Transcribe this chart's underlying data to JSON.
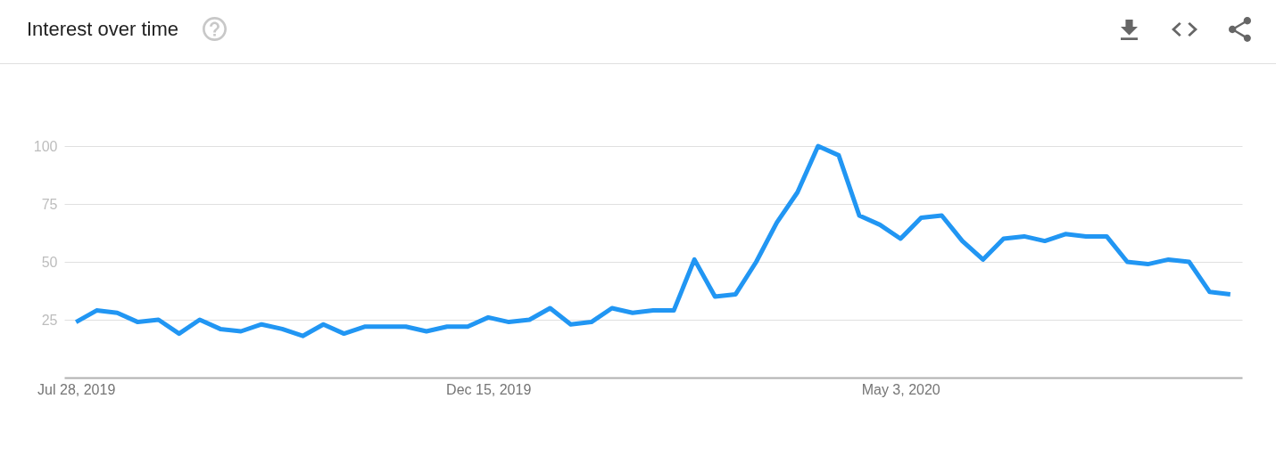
{
  "chart_data": {
    "type": "line",
    "title": "Interest over time",
    "x": [
      "2019-07-28",
      "2019-08-04",
      "2019-08-11",
      "2019-08-18",
      "2019-08-25",
      "2019-09-01",
      "2019-09-08",
      "2019-09-15",
      "2019-09-22",
      "2019-09-29",
      "2019-10-06",
      "2019-10-13",
      "2019-10-20",
      "2019-10-27",
      "2019-11-03",
      "2019-11-10",
      "2019-11-17",
      "2019-11-24",
      "2019-12-01",
      "2019-12-08",
      "2019-12-15",
      "2019-12-22",
      "2019-12-29",
      "2020-01-05",
      "2020-01-12",
      "2020-01-19",
      "2020-01-26",
      "2020-02-02",
      "2020-02-09",
      "2020-02-16",
      "2020-02-23",
      "2020-03-01",
      "2020-03-08",
      "2020-03-15",
      "2020-03-22",
      "2020-03-29",
      "2020-04-05",
      "2020-04-12",
      "2020-04-19",
      "2020-04-26",
      "2020-05-03",
      "2020-05-10",
      "2020-05-17",
      "2020-05-24",
      "2020-05-31",
      "2020-06-07",
      "2020-06-14",
      "2020-06-21",
      "2020-06-28",
      "2020-07-05",
      "2020-07-12",
      "2020-07-19",
      "2020-07-26",
      "2020-08-02",
      "2020-08-09",
      "2020-08-16",
      "2020-08-23"
    ],
    "values": [
      24,
      29,
      28,
      24,
      25,
      19,
      25,
      21,
      20,
      23,
      21,
      18,
      23,
      19,
      22,
      22,
      22,
      20,
      22,
      22,
      26,
      24,
      25,
      30,
      23,
      24,
      30,
      28,
      29,
      29,
      51,
      35,
      36,
      50,
      67,
      80,
      100,
      96,
      70,
      66,
      60,
      69,
      70,
      59,
      51,
      60,
      61,
      59,
      62,
      61,
      61,
      50,
      49,
      51,
      50,
      37,
      36
    ],
    "color": "#2196f3",
    "xlim": [
      "2019-07-24",
      "2020-08-27"
    ],
    "xticks": [
      {
        "value": "2019-07-28",
        "label": "Jul 28, 2019"
      },
      {
        "value": "2019-12-15",
        "label": "Dec 15, 2019"
      },
      {
        "value": "2020-05-03",
        "label": "May 3, 2020"
      }
    ],
    "ylim": [
      0,
      100
    ],
    "yticks": [
      25,
      50,
      75,
      100
    ],
    "grid": "y"
  }
}
